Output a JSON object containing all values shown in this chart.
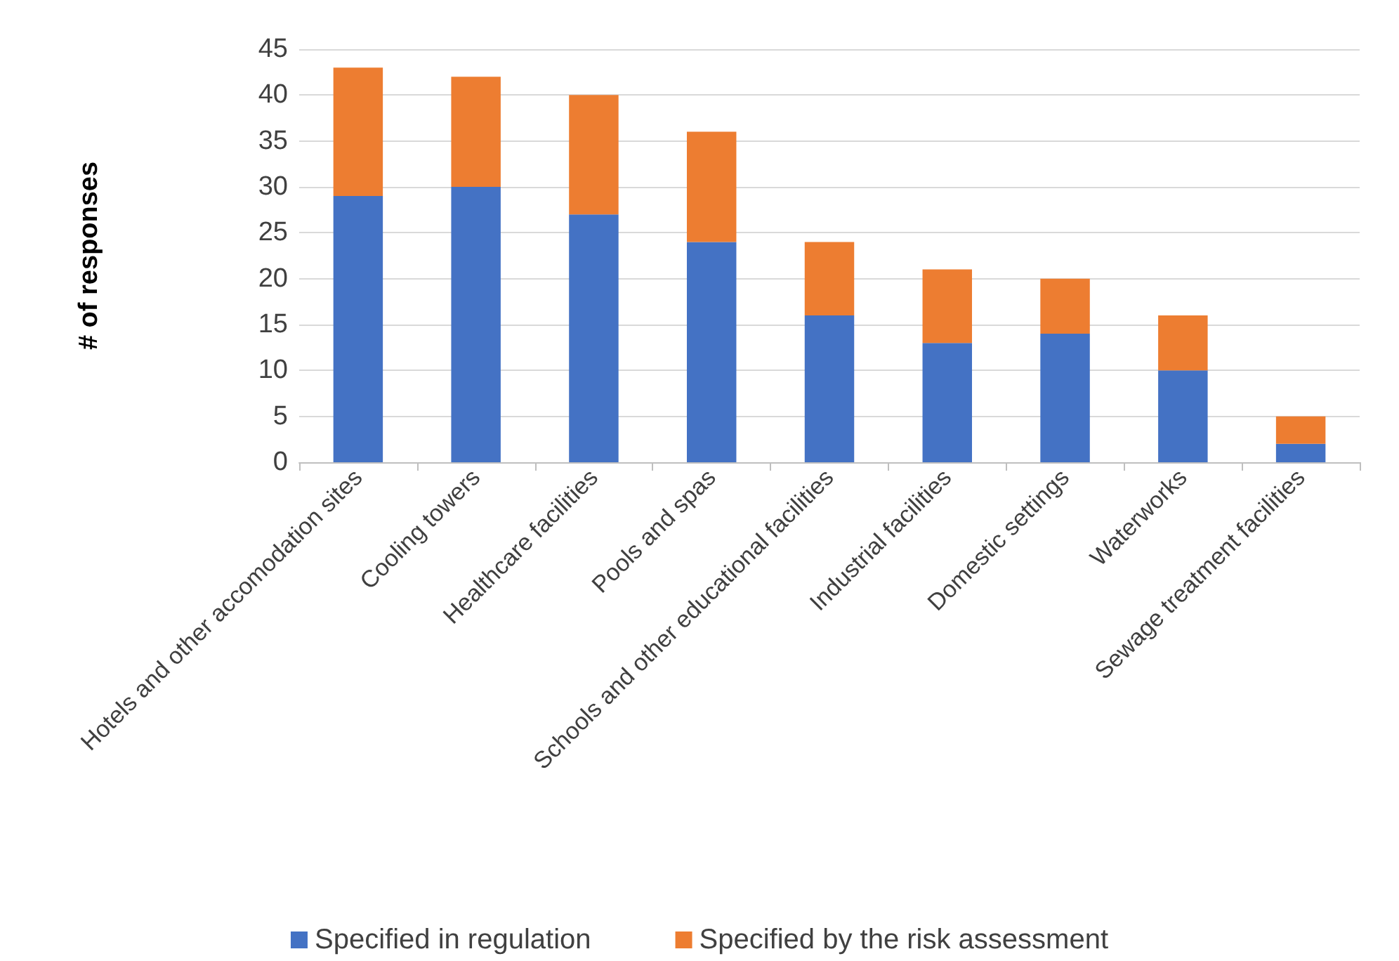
{
  "chart_data": {
    "type": "bar",
    "stacked": true,
    "ylabel": "# of responses",
    "categories": [
      "Hotels and other accomodation sites",
      "Cooling towers",
      "Healthcare facilities",
      "Pools and spas",
      "Schools and other educational facilities",
      "Industrial facilities",
      "Domestic settings",
      "Waterworks",
      "Sewage treatment facilities"
    ],
    "series": [
      {
        "name": "Specified in regulation",
        "color": "#4472c4",
        "values": [
          29,
          30,
          27,
          24,
          16,
          13,
          14,
          10,
          2
        ]
      },
      {
        "name": "Specified by the risk assessment",
        "color": "#ed7d31",
        "values": [
          14,
          12,
          13,
          12,
          8,
          8,
          6,
          6,
          3
        ]
      }
    ],
    "ylim": [
      0,
      45
    ],
    "yticks": [
      0,
      5,
      10,
      15,
      20,
      25,
      30,
      35,
      40,
      45
    ],
    "grid": "y",
    "legend": "bottom"
  }
}
